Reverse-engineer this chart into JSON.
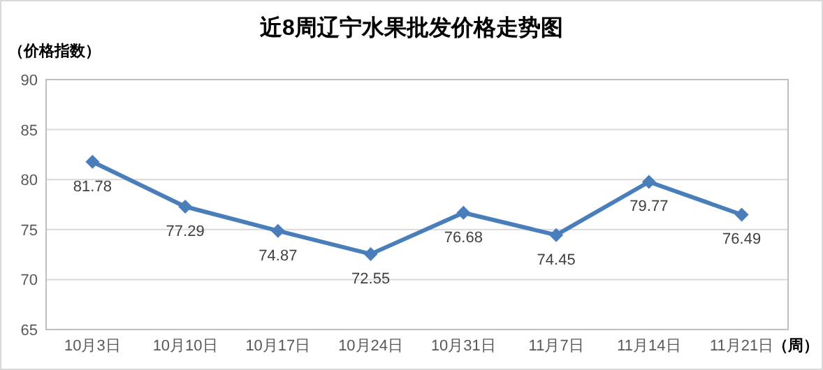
{
  "chart_data": {
    "type": "line",
    "title": "近8周辽宁水果批发价格走势图",
    "ylabel": "（价格指数）",
    "xlabel": "（周）",
    "categories": [
      "10月3日",
      "10月10日",
      "10月17日",
      "10月24日",
      "10月31日",
      "11月7日",
      "11月14日",
      "11月21日"
    ],
    "series": [
      {
        "color": "#4a7ebb",
        "values": [
          81.78,
          77.29,
          74.87,
          72.55,
          76.68,
          74.45,
          79.77,
          76.49
        ]
      }
    ],
    "ylim": [
      65,
      90
    ],
    "yticks": [
      65,
      70,
      75,
      80,
      85,
      90
    ],
    "grid": "y",
    "marker": "diamond",
    "line_style": "solid",
    "data_labels": true
  }
}
